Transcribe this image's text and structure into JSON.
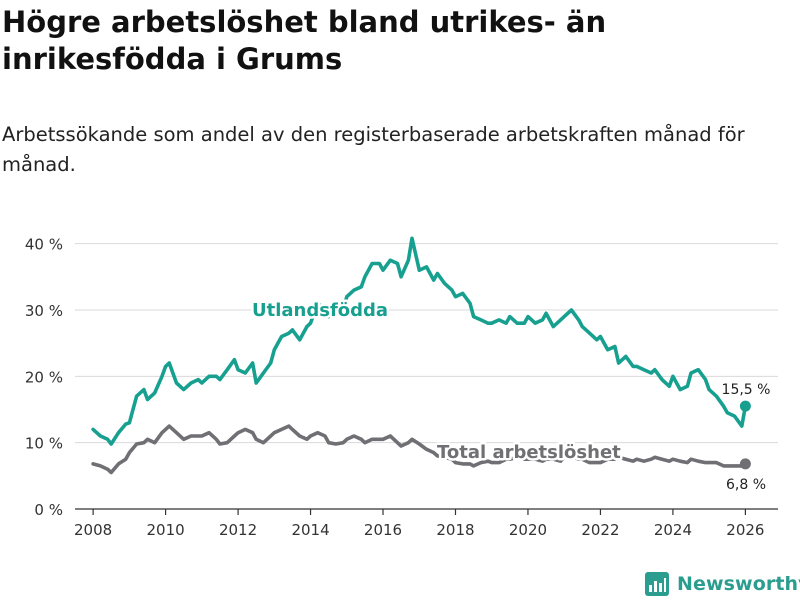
{
  "title": "Högre arbetslöshet bland utrikes- än inrikesfödda i Grums",
  "subtitle": "Arbetssökande som andel av den registerbaserade arbetskraften månad för månad.",
  "brand": {
    "name": "Newsworthy"
  },
  "colors": {
    "foreign": "#17a090",
    "total": "#6f6f74",
    "grid": "#d9d9d9",
    "axis": "#333333"
  },
  "chart_data": {
    "type": "line",
    "title": "Högre arbetslöshet bland utrikes- än inrikesfödda i Grums",
    "xlabel": "",
    "ylabel": "",
    "xlim": [
      2007.5,
      2026.9
    ],
    "ylim": [
      0,
      41
    ],
    "y_ticks": [
      0,
      10,
      20,
      30,
      40
    ],
    "y_tick_labels": [
      "0 %",
      "10 %",
      "20 %",
      "30 %",
      "40 %"
    ],
    "x_ticks": [
      2008,
      2010,
      2012,
      2014,
      2016,
      2018,
      2020,
      2022,
      2024,
      2026
    ],
    "x_tick_labels": [
      "2008",
      "2010",
      "2012",
      "2014",
      "2016",
      "2018",
      "2020",
      "2022",
      "2024",
      "2026"
    ],
    "series": [
      {
        "name": "Utlandsfödda",
        "label": "Utlandsfödda",
        "end_label": "15,5 %",
        "x": [
          2008.0,
          2008.2,
          2008.4,
          2008.5,
          2008.7,
          2008.9,
          2009.0,
          2009.2,
          2009.4,
          2009.5,
          2009.7,
          2009.9,
          2010.0,
          2010.1,
          2010.3,
          2010.5,
          2010.7,
          2010.9,
          2011.0,
          2011.2,
          2011.4,
          2011.5,
          2011.7,
          2011.9,
          2012.0,
          2012.2,
          2012.4,
          2012.5,
          2012.7,
          2012.9,
          2013.0,
          2013.2,
          2013.4,
          2013.5,
          2013.7,
          2013.9,
          2014.0,
          2014.2,
          2014.4,
          2014.5,
          2014.7,
          2014.9,
          2015.0,
          2015.2,
          2015.4,
          2015.5,
          2015.7,
          2015.9,
          2016.0,
          2016.2,
          2016.4,
          2016.5,
          2016.7,
          2016.8,
          2017.0,
          2017.2,
          2017.4,
          2017.5,
          2017.7,
          2017.9,
          2018.0,
          2018.2,
          2018.4,
          2018.5,
          2018.7,
          2018.9,
          2019.0,
          2019.2,
          2019.4,
          2019.5,
          2019.7,
          2019.9,
          2020.0,
          2020.2,
          2020.4,
          2020.5,
          2020.7,
          2020.9,
          2021.0,
          2021.2,
          2021.4,
          2021.5,
          2021.7,
          2021.9,
          2022.0,
          2022.2,
          2022.4,
          2022.5,
          2022.7,
          2022.9,
          2023.0,
          2023.2,
          2023.4,
          2023.5,
          2023.7,
          2023.9,
          2024.0,
          2024.2,
          2024.4,
          2024.5,
          2024.7,
          2024.9,
          2025.0,
          2025.2,
          2025.4,
          2025.5,
          2025.7,
          2025.9,
          2026.0
        ],
        "values": [
          12,
          11,
          10.5,
          9.8,
          11.5,
          12.8,
          13,
          17,
          18,
          16.5,
          17.5,
          20,
          21.5,
          22,
          19,
          18,
          19,
          19.5,
          19,
          20,
          20,
          19.5,
          21,
          22.5,
          21,
          20.5,
          22,
          19,
          20.5,
          22,
          24,
          26,
          26.5,
          27,
          25.5,
          27.5,
          28,
          31,
          30,
          29,
          30.5,
          30,
          32,
          33,
          33.5,
          35,
          37,
          37,
          36,
          37.5,
          37,
          35,
          37.5,
          40.8,
          36,
          36.5,
          34.5,
          35.5,
          34,
          33,
          32,
          32.5,
          31,
          29,
          28.5,
          28,
          28,
          28.5,
          28,
          29,
          28,
          28,
          29,
          28,
          28.5,
          29.5,
          27.5,
          28.5,
          29,
          30,
          28.5,
          27.5,
          26.5,
          25.5,
          26,
          24,
          24.5,
          22,
          23,
          21.5,
          21.5,
          21,
          20.5,
          21,
          19.5,
          18.5,
          20,
          18,
          18.5,
          20.5,
          21,
          19.5,
          18,
          17,
          15.5,
          14.5,
          14,
          12.5,
          15.5
        ]
      },
      {
        "name": "Total arbetslöshet",
        "label": "Total arbetslöshet",
        "end_label": "6,8 %",
        "x": [
          2008.0,
          2008.2,
          2008.4,
          2008.5,
          2008.7,
          2008.9,
          2009.0,
          2009.2,
          2009.4,
          2009.5,
          2009.7,
          2009.9,
          2010.0,
          2010.1,
          2010.3,
          2010.5,
          2010.7,
          2010.9,
          2011.0,
          2011.2,
          2011.4,
          2011.5,
          2011.7,
          2011.9,
          2012.0,
          2012.2,
          2012.4,
          2012.5,
          2012.7,
          2012.9,
          2013.0,
          2013.2,
          2013.4,
          2013.5,
          2013.7,
          2013.9,
          2014.0,
          2014.2,
          2014.4,
          2014.5,
          2014.7,
          2014.9,
          2015.0,
          2015.2,
          2015.4,
          2015.5,
          2015.7,
          2015.9,
          2016.0,
          2016.2,
          2016.4,
          2016.5,
          2016.7,
          2016.8,
          2017.0,
          2017.2,
          2017.4,
          2017.5,
          2017.7,
          2017.9,
          2018.0,
          2018.2,
          2018.4,
          2018.5,
          2018.7,
          2018.9,
          2019.0,
          2019.2,
          2019.4,
          2019.5,
          2019.7,
          2019.9,
          2020.0,
          2020.2,
          2020.4,
          2020.5,
          2020.7,
          2020.9,
          2021.0,
          2021.2,
          2021.4,
          2021.5,
          2021.7,
          2021.9,
          2022.0,
          2022.2,
          2022.4,
          2022.5,
          2022.7,
          2022.9,
          2023.0,
          2023.2,
          2023.4,
          2023.5,
          2023.7,
          2023.9,
          2024.0,
          2024.2,
          2024.4,
          2024.5,
          2024.7,
          2024.9,
          2025.0,
          2025.2,
          2025.4,
          2025.5,
          2025.7,
          2025.9,
          2026.0
        ],
        "values": [
          6.8,
          6.5,
          6,
          5.5,
          6.8,
          7.5,
          8.5,
          9.8,
          10,
          10.5,
          10,
          11.5,
          12,
          12.5,
          11.5,
          10.5,
          11,
          11,
          11,
          11.5,
          10.5,
          9.8,
          10,
          11,
          11.5,
          12,
          11.5,
          10.5,
          10,
          11,
          11.5,
          12,
          12.5,
          12,
          11,
          10.5,
          11,
          11.5,
          11,
          10,
          9.8,
          10,
          10.5,
          11,
          10.5,
          10,
          10.5,
          10.5,
          10.5,
          11,
          10,
          9.5,
          10,
          10.5,
          9.8,
          9,
          8.5,
          8,
          7.8,
          7.5,
          7,
          6.8,
          6.8,
          6.5,
          7,
          7.2,
          7,
          7,
          7.5,
          7.5,
          7.8,
          7.5,
          7.5,
          7.5,
          7.2,
          7.5,
          7.5,
          7.2,
          7.8,
          8,
          7.5,
          7.5,
          7,
          7,
          7,
          7.5,
          7.5,
          7.8,
          7.5,
          7.2,
          7.5,
          7.2,
          7.5,
          7.8,
          7.5,
          7.2,
          7.5,
          7.2,
          7,
          7.5,
          7.2,
          7,
          7,
          7,
          6.5,
          6.5,
          6.5,
          6.5,
          6.8
        ]
      }
    ]
  }
}
